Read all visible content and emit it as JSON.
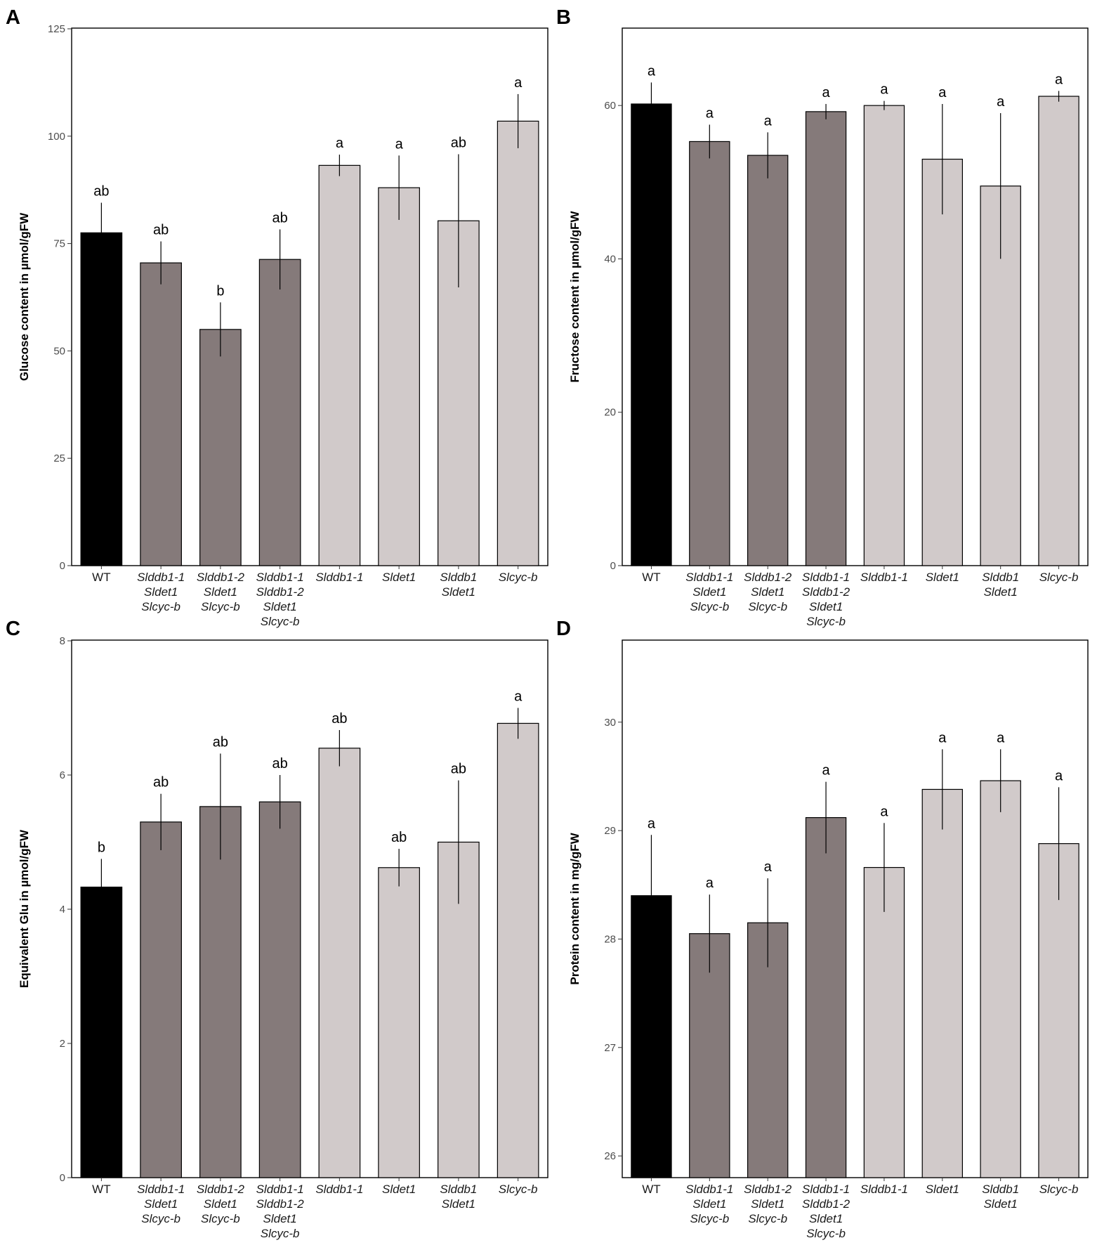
{
  "figure": {
    "categories": [
      [
        "WT"
      ],
      [
        "Slddb1-1",
        "Sldet1",
        "Slcyc-b"
      ],
      [
        "Slddb1-2",
        "Sldet1",
        "Slcyc-b"
      ],
      [
        "Slddb1-1",
        "Slddb1-2",
        "Sldet1",
        "Slcyc-b"
      ],
      [
        "Slddb1-1"
      ],
      [
        "Sldet1"
      ],
      [
        "Slddb1",
        "Sldet1"
      ],
      [
        "Slcyc-b"
      ]
    ],
    "category_italic": [
      false,
      true,
      true,
      true,
      true,
      true,
      true,
      true
    ],
    "bar_colors": [
      "#000000",
      "#857a7a",
      "#857a7a",
      "#857a7a",
      "#d1caca",
      "#d1caca",
      "#d1caca",
      "#d1caca"
    ]
  },
  "chart_data": [
    {
      "panel": "A",
      "type": "bar",
      "ylabel": "Glucose content in µmol/gFW",
      "ylim": [
        0,
        125
      ],
      "yticks": [
        0,
        25,
        50,
        75,
        100,
        125
      ],
      "values": [
        77.5,
        70.5,
        55,
        71.3,
        93.2,
        88,
        80.3,
        103.5
      ],
      "errors": [
        7,
        5,
        6.3,
        7,
        2.5,
        7.5,
        15.5,
        6.3
      ],
      "significance": [
        "ab",
        "ab",
        "b",
        "ab",
        "a",
        "a",
        "ab",
        "a"
      ]
    },
    {
      "panel": "B",
      "type": "bar",
      "ylabel": "Fructose content in µmol/gFW",
      "ylim": [
        0,
        70
      ],
      "yticks": [
        0,
        20,
        40,
        60
      ],
      "values": [
        60.2,
        55.3,
        53.5,
        59.2,
        60,
        53,
        49.5,
        61.2
      ],
      "errors": [
        2.8,
        2.2,
        3,
        1,
        0.6,
        7.2,
        9.5,
        0.7
      ],
      "significance": [
        "a",
        "a",
        "a",
        "a",
        "a",
        "a",
        "a",
        "a"
      ]
    },
    {
      "panel": "C",
      "type": "bar",
      "ylabel": "Equivalent Glu in µmol/gFW",
      "ylim": [
        0,
        8
      ],
      "yticks": [
        0,
        2,
        4,
        6,
        8
      ],
      "values": [
        4.33,
        5.3,
        5.53,
        5.6,
        6.4,
        4.62,
        5.0,
        6.77
      ],
      "errors": [
        0.42,
        0.42,
        0.79,
        0.4,
        0.27,
        0.28,
        0.92,
        0.23
      ],
      "significance": [
        "b",
        "ab",
        "ab",
        "ab",
        "ab",
        "ab",
        "ab",
        "a"
      ]
    },
    {
      "panel": "D",
      "type": "bar",
      "ylabel": "Protein content in mg/gFW",
      "ylim": [
        25.8,
        30.75
      ],
      "yticks": [
        26,
        27,
        28,
        29,
        30
      ],
      "values": [
        28.4,
        28.05,
        28.15,
        29.12,
        28.66,
        29.38,
        29.46,
        28.88
      ],
      "errors": [
        0.56,
        0.36,
        0.41,
        0.33,
        0.41,
        0.37,
        0.29,
        0.52
      ],
      "significance": [
        "a",
        "a",
        "a",
        "a",
        "a",
        "a",
        "a",
        "a"
      ]
    }
  ]
}
